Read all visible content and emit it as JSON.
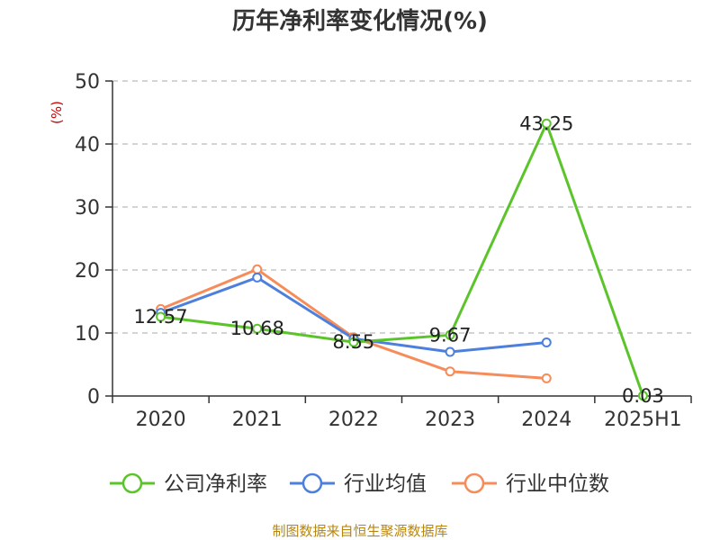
{
  "chart_data": {
    "type": "line",
    "title": "历年净利率变化情况(%)",
    "ylabel": "(%)",
    "xlabel": "",
    "categories": [
      "2020",
      "2021",
      "2022",
      "2023",
      "2024",
      "2025H1"
    ],
    "ylim": [
      0,
      50
    ],
    "yticks": [
      "0",
      "10",
      "20",
      "30",
      "40",
      "50"
    ],
    "grid": true,
    "legend_position": "bottom",
    "series": [
      {
        "name": "公司净利率",
        "color": "#5cc42b",
        "values": [
          12.57,
          10.68,
          8.55,
          9.67,
          43.25,
          0.03
        ],
        "labels": [
          "12.57",
          "10.68",
          "8.55",
          "9.67",
          "43.25",
          "0.03"
        ]
      },
      {
        "name": "行业均值",
        "color": "#4d7fdc",
        "values": [
          13.2,
          18.8,
          9.1,
          7.0,
          8.5,
          null
        ]
      },
      {
        "name": "行业中位数",
        "color": "#f58c5a",
        "values": [
          13.8,
          20.1,
          9.3,
          3.9,
          2.8,
          null
        ]
      }
    ]
  },
  "source": "制图数据来自恒生聚源数据库"
}
